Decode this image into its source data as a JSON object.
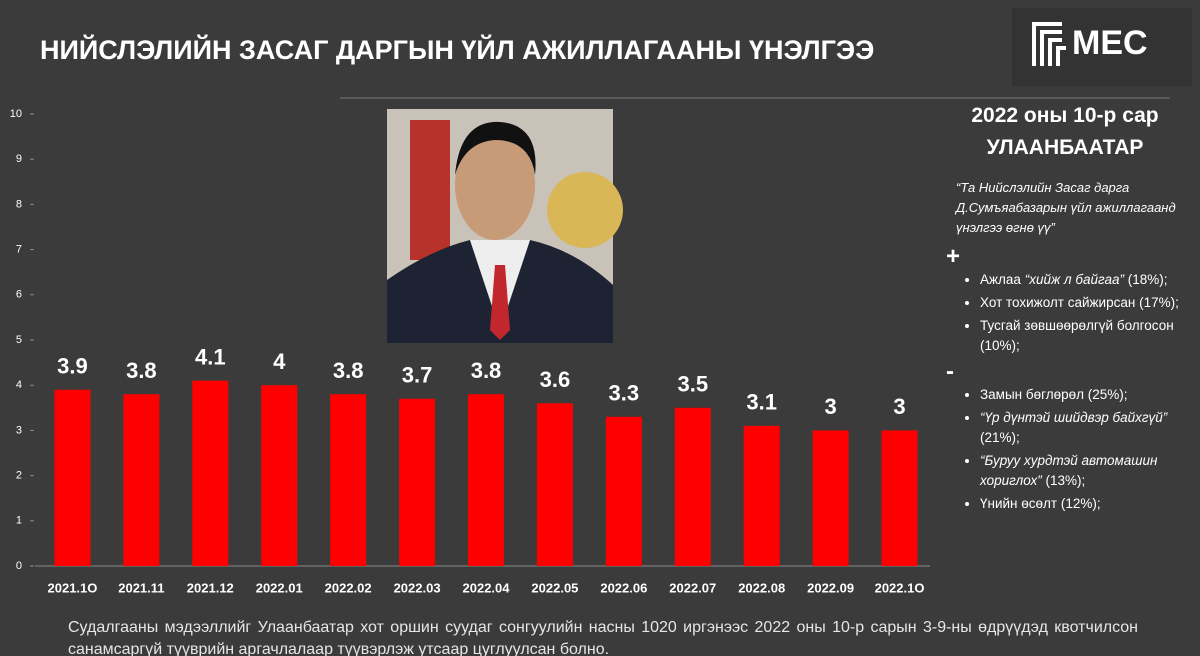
{
  "chart_data": {
    "type": "bar",
    "title": "НИЙСЛЭЛИЙН ЗАСАГ ДАРГЫН ҮЙЛ АЖИЛЛАГААНЫ ҮНЭЛГЭЭ",
    "categories": [
      "2021.1O",
      "2021.11",
      "2021.12",
      "2022.01",
      "2022.02",
      "2022.03",
      "2022.04",
      "2022.05",
      "2022.06",
      "2022.07",
      "2022.08",
      "2022.09",
      "2022.1O"
    ],
    "values": [
      3.9,
      3.8,
      4.1,
      4,
      3.8,
      3.7,
      3.8,
      3.6,
      3.3,
      3.5,
      3.1,
      3,
      3
    ],
    "color": "#ff0000",
    "ylim": [
      0,
      10
    ],
    "yticks": [
      0,
      1,
      2,
      3,
      4,
      5,
      6,
      7,
      8,
      9,
      10
    ]
  },
  "logo": "MEC",
  "panel": {
    "date": "2022 оны 10-р сар",
    "city": "УЛААНБААТАР",
    "question": "“Та Нийслэлийн Засаг дарга Д.Сумъяабазарын үйл ажиллагаанд үнэлгээ өгнө үү”",
    "positive": {
      "sign": "+",
      "items": [
        {
          "text": "Ажлаа",
          "quote": "“хийж л байгаа”",
          "share": "(18%);"
        },
        {
          "text": "Хот тохижолт сайжирсан",
          "share": "(17%);"
        },
        {
          "text": "Тусгай зөвшөөрөлгүй болгосон",
          "share": "(10%);"
        }
      ]
    },
    "negative": {
      "sign": "-",
      "items": [
        {
          "text": "Замын бөглөрөл",
          "share": "(25%);"
        },
        {
          "quote": "“Үр дүнтэй шийдвэр байхгүй”",
          "share": "(21%);"
        },
        {
          "quote": "“Буруу хурдтэй автомашин хориглох”",
          "share": "(13%);"
        },
        {
          "text": "Үнийн өсөлт",
          "share": "(12%);"
        }
      ]
    }
  },
  "footer": "Судалгааны мэдээллийг Улаанбаатар хот оршин суудаг сонгуулийн насны 1020 иргэнээс 2022 оны 10-р сарын 3-9-ны өдрүүдэд квотчилсон санамсаргүй түүврийн аргачлалаар түүвэрлэж утсаар цуглуулсан болно."
}
